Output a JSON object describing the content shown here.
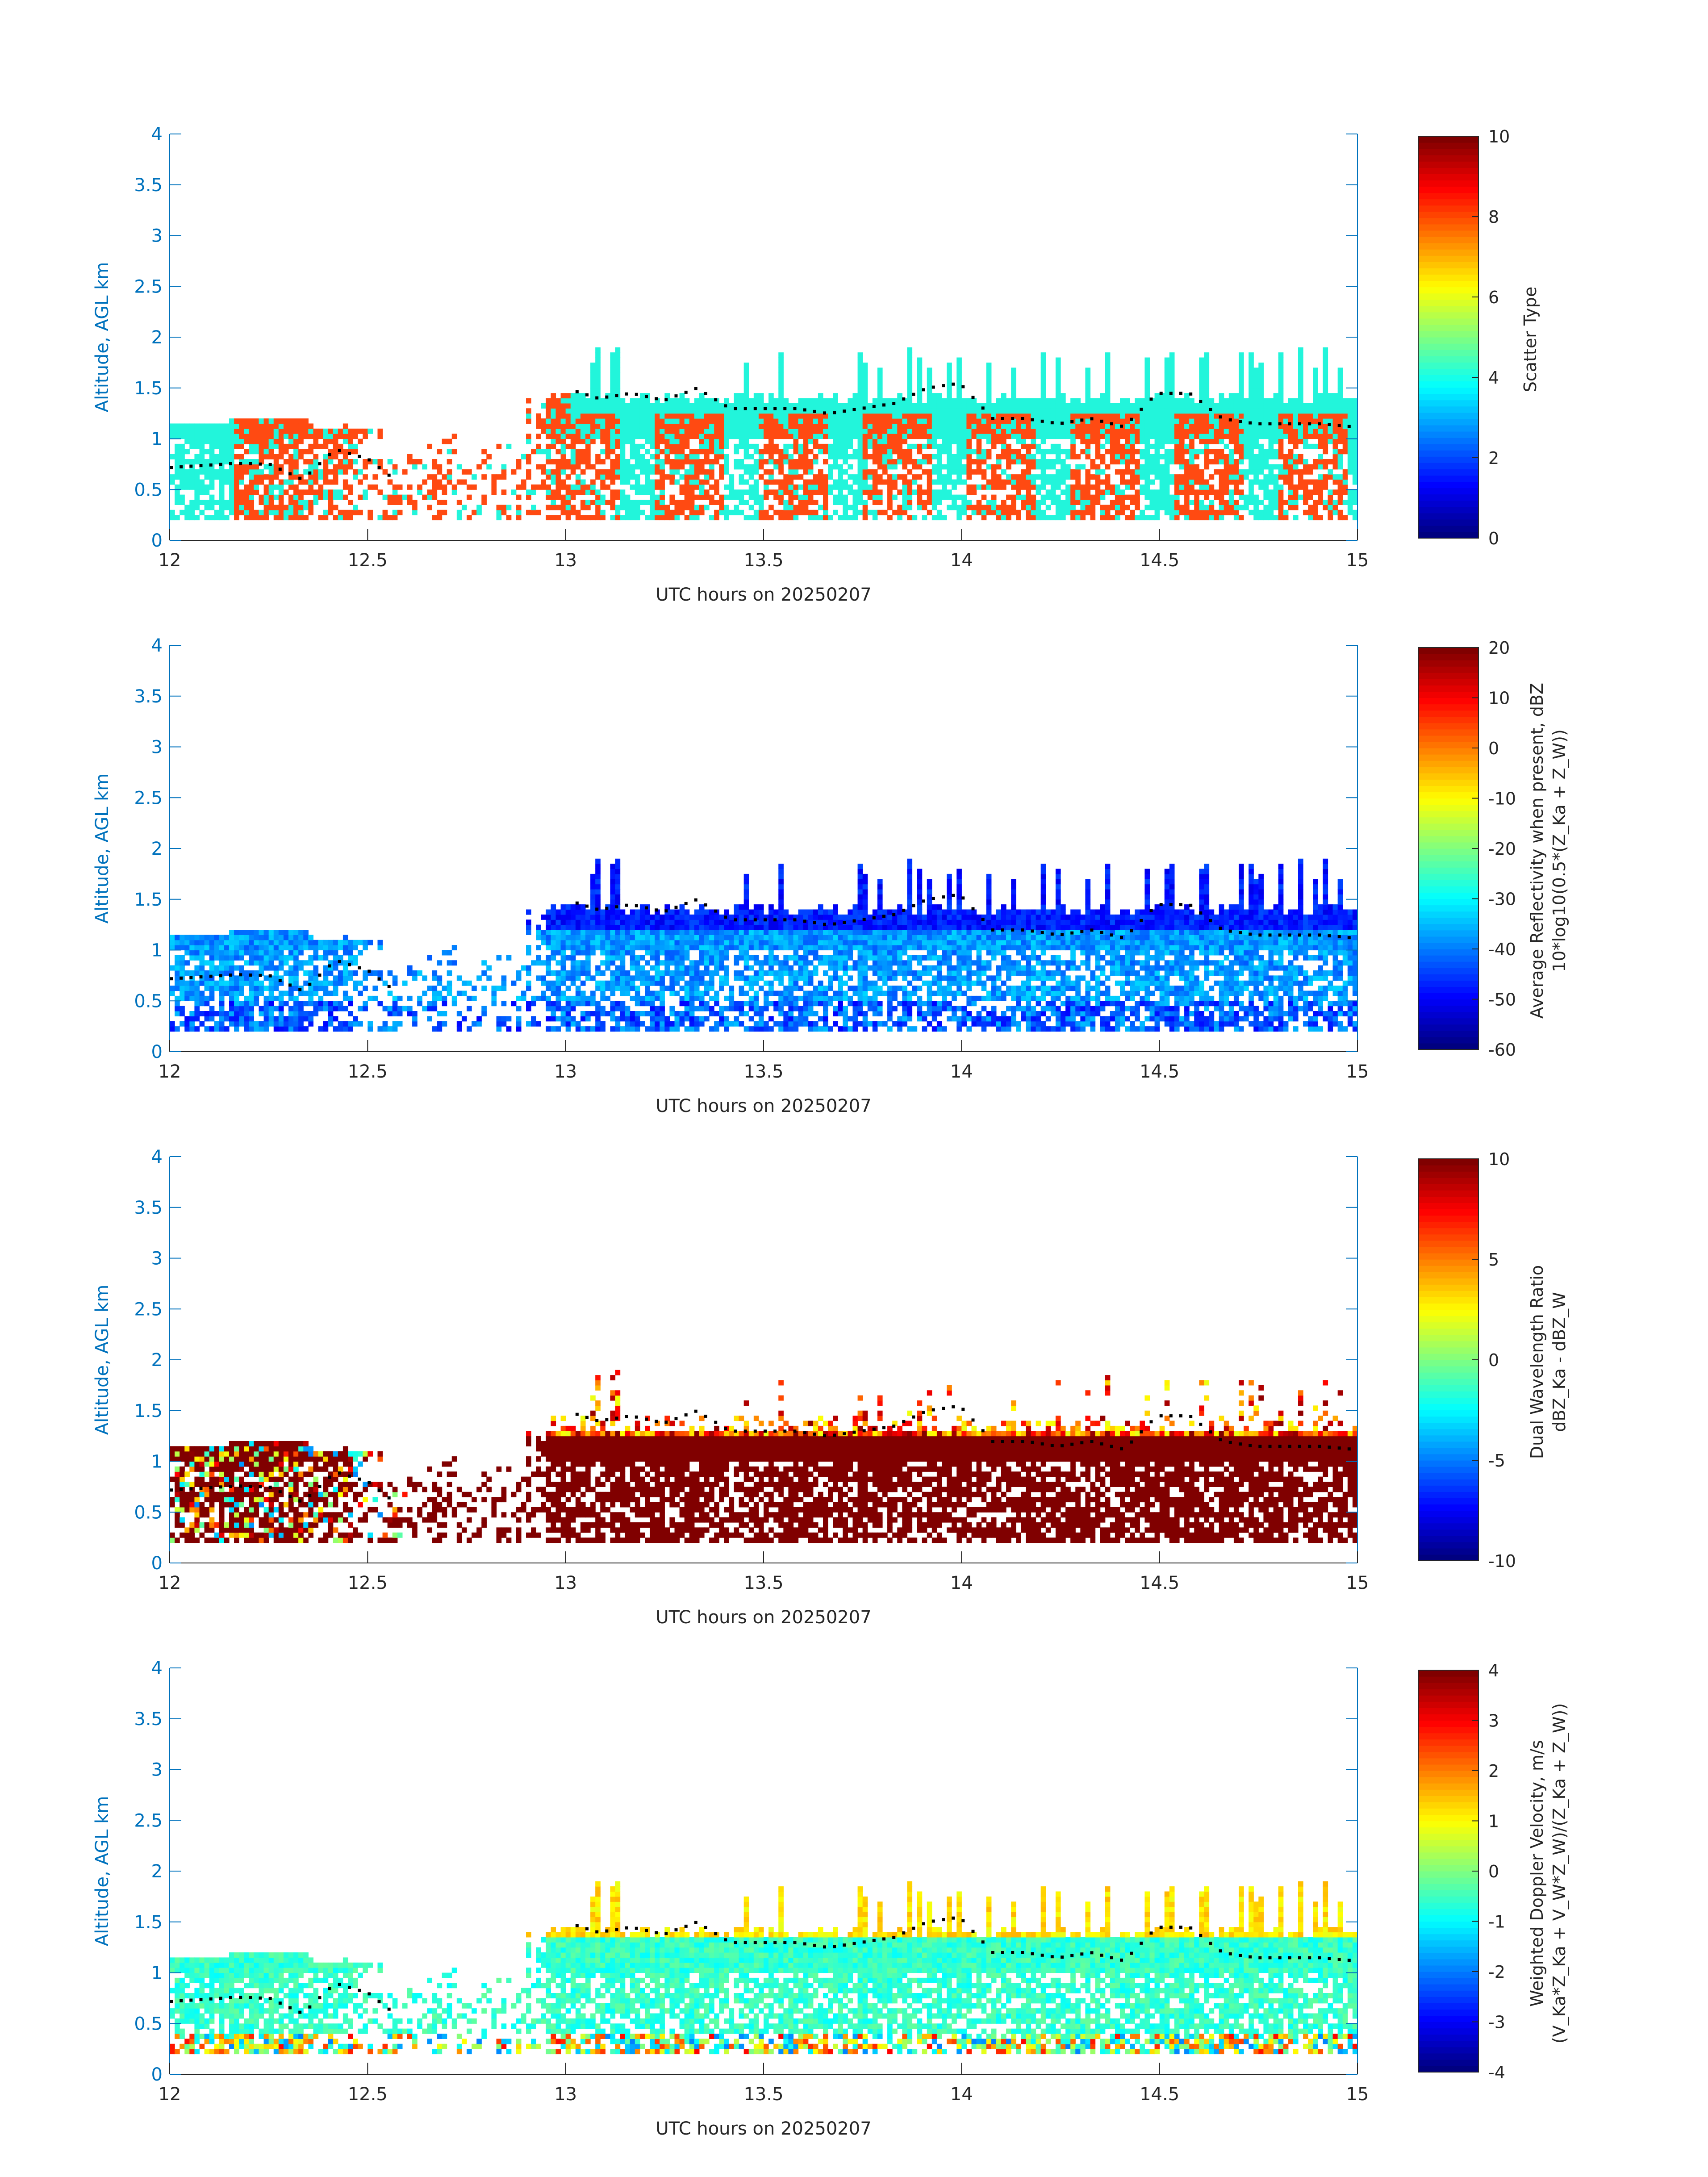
{
  "figure": {
    "axis_color": "#0072BD",
    "text_color": "#262626",
    "dot_color": "#000000",
    "white": "#FFFFFF"
  },
  "chart_data": [
    {
      "type": "heatmap",
      "id": "scatter-type",
      "xlabel": "UTC hours on 20250207",
      "ylabel": "Altitude, AGL km",
      "xlim": [
        12,
        15
      ],
      "ylim": [
        0,
        4
      ],
      "xticks": [
        "12",
        "12.5",
        "13",
        "13.5",
        "14",
        "14.5",
        "15"
      ],
      "yticks": [
        "0",
        "0.5",
        "1",
        "1.5",
        "2",
        "2.5",
        "3",
        "3.5",
        "4"
      ],
      "colorbar": {
        "label_lines": [
          "Scatter Type"
        ],
        "clim": [
          0,
          10
        ],
        "ticks": [
          "0",
          "2",
          "4",
          "6",
          "8",
          "10"
        ]
      },
      "colors": {
        "primary": "#22F5DB",
        "secondary": "#FF4A12"
      },
      "cloud_top_km": [
        0.72,
        0.74,
        0.76,
        0.75,
        0.6,
        0.9,
        0.8,
        0.55,
        0.5,
        0.55,
        0.6,
        1.55,
        1.5,
        1.4,
        1.45,
        1.38,
        1.5,
        1.3,
        1.3,
        1.3,
        1.25,
        1.3,
        1.35,
        1.5,
        1.55,
        1.2,
        1.2,
        1.15,
        1.2,
        1.12,
        1.45,
        1.45,
        1.2,
        1.15,
        1.15,
        1.15,
        1.12
      ]
    },
    {
      "type": "heatmap",
      "id": "reflectivity",
      "xlabel": "UTC hours on 20250207",
      "ylabel": "Altitude, AGL km",
      "xlim": [
        12,
        15
      ],
      "ylim": [
        0,
        4
      ],
      "xticks": [
        "12",
        "12.5",
        "13",
        "13.5",
        "14",
        "14.5",
        "15"
      ],
      "yticks": [
        "0",
        "0.5",
        "1",
        "1.5",
        "2",
        "2.5",
        "3",
        "3.5",
        "4"
      ],
      "colorbar": {
        "label_lines": [
          "Average Reflectivity when present, dBZ",
          "10*log10(0.5*(Z_Ka + Z_W))"
        ],
        "clim": [
          -60,
          20
        ],
        "ticks": [
          "-60",
          "-50",
          "-40",
          "-30",
          "-20",
          "-10",
          "0",
          "10",
          "20"
        ]
      }
    },
    {
      "type": "heatmap",
      "id": "dual-wavelength-ratio",
      "xlabel": "UTC hours on 20250207",
      "ylabel": "Altitude, AGL km",
      "xlim": [
        12,
        15
      ],
      "ylim": [
        0,
        4
      ],
      "xticks": [
        "12",
        "12.5",
        "13",
        "13.5",
        "14",
        "14.5",
        "15"
      ],
      "yticks": [
        "0",
        "0.5",
        "1",
        "1.5",
        "2",
        "2.5",
        "3",
        "3.5",
        "4"
      ],
      "colorbar": {
        "label_lines": [
          "Dual Wavelength Ratio",
          "dBZ_Ka - dBZ_W"
        ],
        "clim": [
          -10,
          10
        ],
        "ticks": [
          "-10",
          "-5",
          "0",
          "5",
          "10"
        ]
      }
    },
    {
      "type": "heatmap",
      "id": "doppler-velocity",
      "xlabel": "UTC hours on 20250207",
      "ylabel": "Altitude, AGL km",
      "xlim": [
        12,
        15
      ],
      "ylim": [
        0,
        4
      ],
      "xticks": [
        "12",
        "12.5",
        "13",
        "13.5",
        "14",
        "14.5",
        "15"
      ],
      "yticks": [
        "0",
        "0.5",
        "1",
        "1.5",
        "2",
        "2.5",
        "3",
        "3.5",
        "4"
      ],
      "colorbar": {
        "label_lines": [
          "Weighted Doppler Velocity, m/s",
          "(V_Ka*Z_Ka + V_W*Z_W)/(Z_Ka + Z_W))"
        ],
        "clim": [
          -4,
          4
        ],
        "ticks": [
          "-4",
          "-3",
          "-2",
          "-1",
          "0",
          "1",
          "2",
          "3",
          "4"
        ]
      }
    }
  ]
}
